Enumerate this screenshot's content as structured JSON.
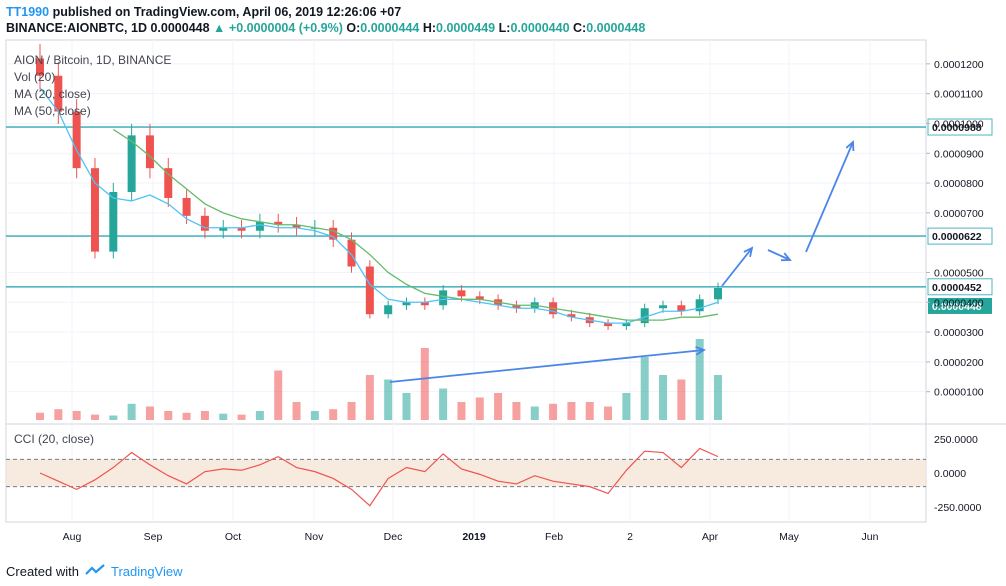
{
  "header": {
    "user": "TT1990",
    "published": "published on TradingView.com, April 06, 2019 12:26:06 +07",
    "symbol_line": "BINANCE:AIONBTC, 1D",
    "last": "0.0000448",
    "change": "+0.0000004 (+0.9%)",
    "open_label": "O:",
    "open": "0.0000444",
    "high_label": "H:",
    "high": "0.0000449",
    "low_label": "L:",
    "low": "0.0000440",
    "close_label": "C:",
    "close": "0.0000448"
  },
  "legend": {
    "title": "AION / Bitcoin, 1D, BINANCE",
    "vol": "Vol (20)",
    "ma20": "MA (20, close)",
    "ma50": "MA (50, close)"
  },
  "cci_label": "CCI (20, close)",
  "footer": {
    "created_with": "Created with",
    "brand": "TradingView"
  },
  "colors": {
    "up": "#26a69a",
    "down": "#ef5350",
    "ma20": "#4fc3f7",
    "ma50": "#66bb6a",
    "hline": "#4fb6c4",
    "arrow": "#4a86e8",
    "cci": "#ef5350",
    "cci_band": "#f5e6d8",
    "vol_ma": "#ff9800"
  },
  "chart_data": [
    {
      "type": "candlestick",
      "title": "AION / Bitcoin, 1D, BINANCE",
      "x_ticks": [
        "Aug",
        "Sep",
        "Oct",
        "Nov",
        "Dec",
        "2019",
        "Feb",
        "2",
        "Apr",
        "May",
        "Jun"
      ],
      "y_ticks": [
        "0.0001200",
        "0.0001100",
        "0.0001000",
        "0.0000900",
        "0.0000800",
        "0.0000700",
        "0.0000500",
        "0.0000400",
        "0.0000300",
        "0.0000200",
        "0.0000100"
      ],
      "ylim": [
        5e-07,
        0.000128
      ],
      "horizontal_levels": [
        {
          "value": 9.88e-05,
          "label": "0.0000988"
        },
        {
          "value": 6.22e-05,
          "label": "0.0000622"
        },
        {
          "value": 4.52e-05,
          "label": "0.0000452"
        }
      ],
      "last_price": {
        "value": 4.48e-05,
        "label": "0.0000448"
      },
      "close_series": [
        {
          "x": "Jul 20",
          "close": 0.000116
        },
        {
          "x": "Jul 27",
          "close": 0.000104
        },
        {
          "x": "Aug 03",
          "close": 8.5e-05
        },
        {
          "x": "Aug 10",
          "close": 5.7e-05
        },
        {
          "x": "Aug 17",
          "close": 7.7e-05
        },
        {
          "x": "Aug 24",
          "close": 9.6e-05
        },
        {
          "x": "Aug 31",
          "close": 8.5e-05
        },
        {
          "x": "Sep 07",
          "close": 7.5e-05
        },
        {
          "x": "Sep 14",
          "close": 6.9e-05
        },
        {
          "x": "Sep 21",
          "close": 6.4e-05
        },
        {
          "x": "Sep 28",
          "close": 6.5e-05
        },
        {
          "x": "Oct 05",
          "close": 6.4e-05
        },
        {
          "x": "Oct 12",
          "close": 6.7e-05
        },
        {
          "x": "Oct 19",
          "close": 6.6e-05
        },
        {
          "x": "Oct 26",
          "close": 6.5e-05
        },
        {
          "x": "Nov 02",
          "close": 6.5e-05
        },
        {
          "x": "Nov 09",
          "close": 6.1e-05
        },
        {
          "x": "Nov 16",
          "close": 5.2e-05
        },
        {
          "x": "Nov 23",
          "close": 3.6e-05
        },
        {
          "x": "Nov 30",
          "close": 3.9e-05
        },
        {
          "x": "Dec 07",
          "close": 4e-05
        },
        {
          "x": "Dec 14",
          "close": 3.9e-05
        },
        {
          "x": "Dec 21",
          "close": 4.4e-05
        },
        {
          "x": "Dec 28",
          "close": 4.2e-05
        },
        {
          "x": "Jan 04",
          "close": 4.1e-05
        },
        {
          "x": "Jan 11",
          "close": 3.9e-05
        },
        {
          "x": "Jan 18",
          "close": 3.8e-05
        },
        {
          "x": "Jan 25",
          "close": 4e-05
        },
        {
          "x": "Feb 01",
          "close": 3.6e-05
        },
        {
          "x": "Feb 08",
          "close": 3.5e-05
        },
        {
          "x": "Feb 15",
          "close": 3.3e-05
        },
        {
          "x": "Feb 22",
          "close": 3.2e-05
        },
        {
          "x": "Mar 01",
          "close": 3.3e-05
        },
        {
          "x": "Mar 08",
          "close": 3.8e-05
        },
        {
          "x": "Mar 15",
          "close": 3.9e-05
        },
        {
          "x": "Mar 22",
          "close": 3.7e-05
        },
        {
          "x": "Mar 29",
          "close": 4.1e-05
        },
        {
          "x": "Apr 05",
          "close": 4.48e-05
        }
      ],
      "ma20_series": [
        0.000112,
        0.000104,
        9.1e-05,
        8e-05,
        7.5e-05,
        7.4e-05,
        7.6e-05,
        7.3e-05,
        6.8e-05,
        6.5e-05,
        6.5e-05,
        6.5e-05,
        6.6e-05,
        6.5e-05,
        6.5e-05,
        6.4e-05,
        6.2e-05,
        5.6e-05,
        4.6e-05,
        4.1e-05,
        4e-05,
        4e-05,
        4.1e-05,
        4.1e-05,
        4e-05,
        3.9e-05,
        3.8e-05,
        3.8e-05,
        3.7e-05,
        3.5e-05,
        3.4e-05,
        3.3e-05,
        3.3e-05,
        3.5e-05,
        3.7e-05,
        3.7e-05,
        3.8e-05,
        4e-05
      ],
      "ma50_series": [
        null,
        null,
        null,
        null,
        9.8e-05,
        9.4e-05,
        8.9e-05,
        8.3e-05,
        7.8e-05,
        7.3e-05,
        7e-05,
        6.8e-05,
        6.7e-05,
        6.6e-05,
        6.6e-05,
        6.5e-05,
        6.4e-05,
        6.1e-05,
        5.6e-05,
        5e-05,
        4.6e-05,
        4.3e-05,
        4.2e-05,
        4.1e-05,
        4.1e-05,
        4e-05,
        3.9e-05,
        3.9e-05,
        3.8e-05,
        3.7e-05,
        3.6e-05,
        3.5e-05,
        3.4e-05,
        3.4e-05,
        3.4e-05,
        3.5e-05,
        3.5e-05,
        3.6e-05
      ]
    },
    {
      "type": "bar",
      "title": "Vol (20)",
      "values_relative": [
        0.08,
        0.12,
        0.1,
        0.06,
        0.05,
        0.18,
        0.15,
        0.1,
        0.08,
        0.1,
        0.07,
        0.06,
        0.1,
        0.55,
        0.2,
        0.1,
        0.12,
        0.2,
        0.5,
        0.45,
        0.3,
        0.8,
        0.35,
        0.2,
        0.25,
        0.3,
        0.2,
        0.15,
        0.18,
        0.2,
        0.2,
        0.15,
        0.3,
        0.7,
        0.5,
        0.45,
        0.9,
        0.5
      ]
    },
    {
      "type": "line",
      "title": "CCI (20, close)",
      "y_ticks": [
        "250.0000",
        "0.0000",
        "-250.0000"
      ],
      "ylim": [
        -330,
        330
      ],
      "bands": [
        100,
        -100
      ],
      "values": [
        0,
        -60,
        -120,
        -50,
        40,
        150,
        60,
        -20,
        -80,
        10,
        30,
        20,
        60,
        120,
        40,
        10,
        -40,
        -120,
        -240,
        -40,
        40,
        10,
        140,
        30,
        -10,
        -60,
        -80,
        -20,
        -60,
        -80,
        -100,
        -150,
        20,
        160,
        150,
        40,
        180,
        120
      ]
    }
  ]
}
